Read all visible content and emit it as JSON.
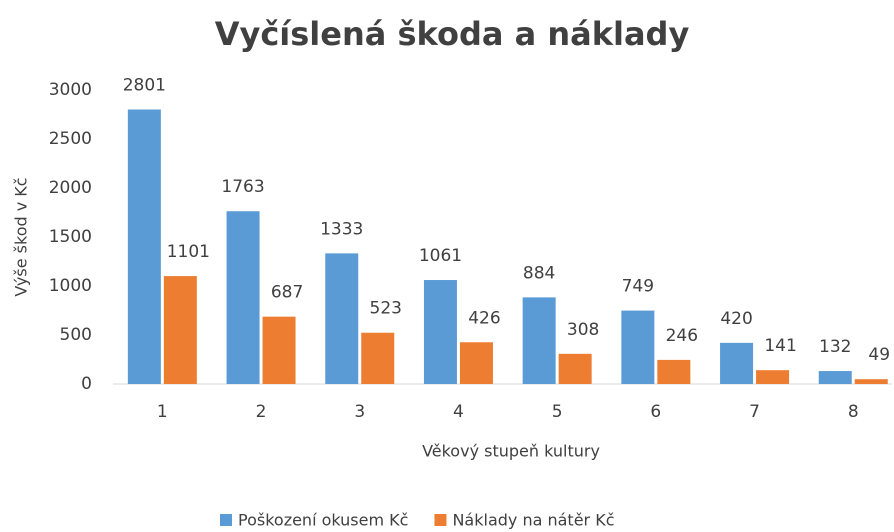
{
  "chart_data": {
    "type": "bar",
    "title": "Vyčíslená škoda a náklady",
    "x_label": "Věkový stupeň kultury",
    "y_label": "Výše škod v Kč",
    "categories": [
      "1",
      "2",
      "3",
      "4",
      "5",
      "6",
      "7",
      "8"
    ],
    "series": [
      {
        "name": "Poškození okusem Kč",
        "color": "#5b9bd5",
        "values": [
          2801,
          1763,
          1333,
          1061,
          884,
          749,
          420,
          132
        ]
      },
      {
        "name": "Náklady na nátěr Kč",
        "color": "#ed7d31",
        "values": [
          1101,
          687,
          523,
          426,
          308,
          246,
          141,
          49
        ]
      }
    ],
    "ylim": [
      0,
      3000
    ],
    "yticks": [
      0,
      500,
      1000,
      1500,
      2000,
      2500,
      3000
    ],
    "grid": false,
    "legend": "bottom"
  }
}
